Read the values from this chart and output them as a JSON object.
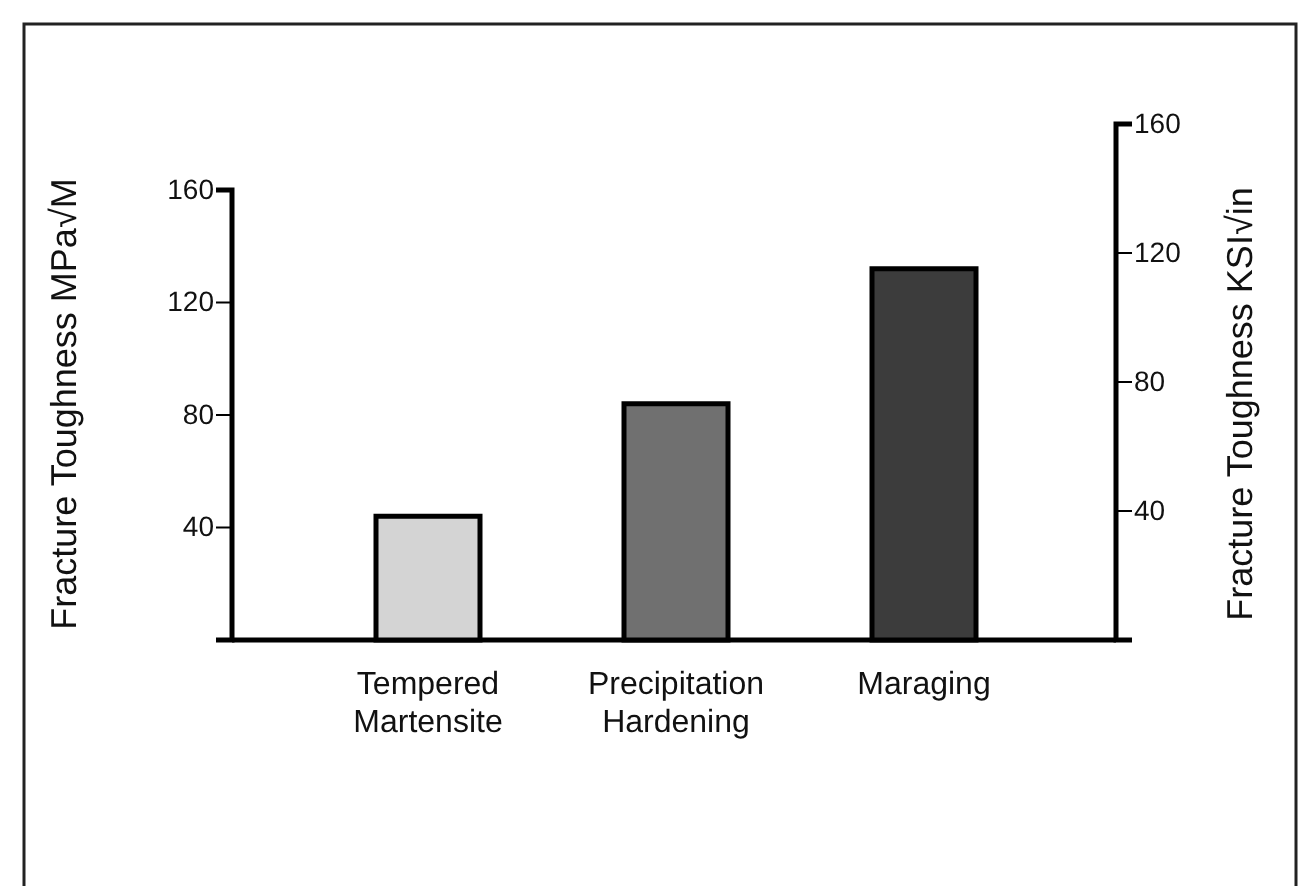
{
  "chart_data": {
    "type": "bar",
    "categories": [
      "Tempered Martensite",
      "Precipitation Hardening",
      "Maraging"
    ],
    "values": [
      44,
      84,
      132
    ],
    "colors": [
      "#d4d4d4",
      "#707070",
      "#3c3c3c"
    ],
    "ylabel": "Fracture Toughness MPa√M",
    "y2label": "Fracture Toughness KSI√in",
    "ylim": [
      0,
      160
    ],
    "yticks": [
      {
        "value": 0,
        "label": null
      },
      40,
      80,
      120,
      160
    ],
    "y2lim": [
      0,
      160
    ],
    "y2ticks": [
      40,
      80,
      120,
      160
    ],
    "grid": false,
    "legend": false
  }
}
